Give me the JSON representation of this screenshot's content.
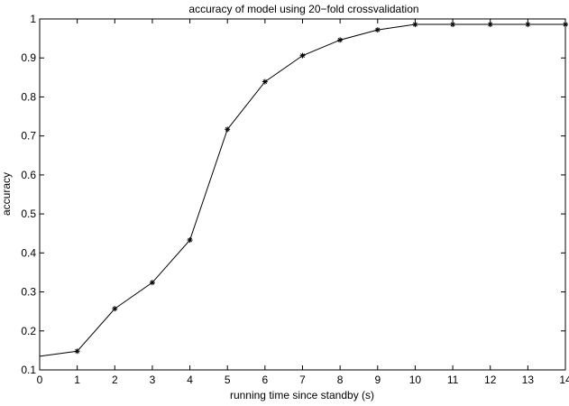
{
  "chart_data": {
    "type": "line",
    "title": "accuracy of model using 20−fold crossvalidation",
    "xlabel": "running time since standby (s)",
    "ylabel": "accuracy",
    "xlim": [
      0,
      14
    ],
    "ylim": [
      0.1,
      1
    ],
    "xticks": [
      "0",
      "1",
      "2",
      "3",
      "4",
      "5",
      "6",
      "7",
      "8",
      "9",
      "10",
      "11",
      "12",
      "13",
      "14"
    ],
    "yticks": [
      "0.1",
      "0.2",
      "0.3",
      "0.4",
      "0.5",
      "0.6",
      "0.7",
      "0.8",
      "0.9",
      "1"
    ],
    "grid": false,
    "series": [
      {
        "x": [
          0,
          1,
          2,
          3,
          4,
          5,
          6,
          7,
          8,
          9,
          10,
          11,
          12,
          13,
          14
        ],
        "y": [
          0.135,
          0.148,
          0.257,
          0.324,
          0.433,
          0.717,
          0.839,
          0.906,
          0.946,
          0.972,
          0.986,
          0.986,
          0.986,
          0.986,
          0.986
        ],
        "markers": [
          false,
          true,
          true,
          true,
          true,
          true,
          true,
          true,
          true,
          true,
          true,
          true,
          true,
          true,
          true
        ],
        "line_color": "#000000",
        "marker": "asterisk"
      }
    ]
  }
}
